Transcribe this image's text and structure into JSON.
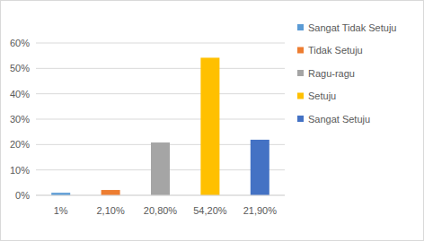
{
  "chart_data": {
    "type": "bar",
    "categories": [
      "1%",
      "2,10%",
      "20,80%",
      "54,20%",
      "21,90%"
    ],
    "series": [
      {
        "name": "Sangat Tidak Setuju",
        "color": "#5b9bd5",
        "values": [
          1,
          null,
          null,
          null,
          null
        ]
      },
      {
        "name": "Tidak Setuju",
        "color": "#ed7d31",
        "values": [
          null,
          2.1,
          null,
          null,
          null
        ]
      },
      {
        "name": "Ragu-ragu",
        "color": "#a5a5a5",
        "values": [
          null,
          null,
          20.8,
          null,
          null
        ]
      },
      {
        "name": "Setuju",
        "color": "#ffc000",
        "values": [
          null,
          null,
          null,
          54.2,
          null
        ]
      },
      {
        "name": "Sangat Setuju",
        "color": "#4472c4",
        "values": [
          null,
          null,
          null,
          null,
          21.9
        ]
      }
    ],
    "ylim": [
      0,
      60
    ],
    "yticks": [
      {
        "value": 0,
        "label": "0%"
      },
      {
        "value": 10,
        "label": "10%"
      },
      {
        "value": 20,
        "label": "20%"
      },
      {
        "value": 30,
        "label": "30%"
      },
      {
        "value": 40,
        "label": "40%"
      },
      {
        "value": 50,
        "label": "50%"
      },
      {
        "value": 60,
        "label": "60%"
      }
    ],
    "grid": true,
    "legend": "right"
  }
}
